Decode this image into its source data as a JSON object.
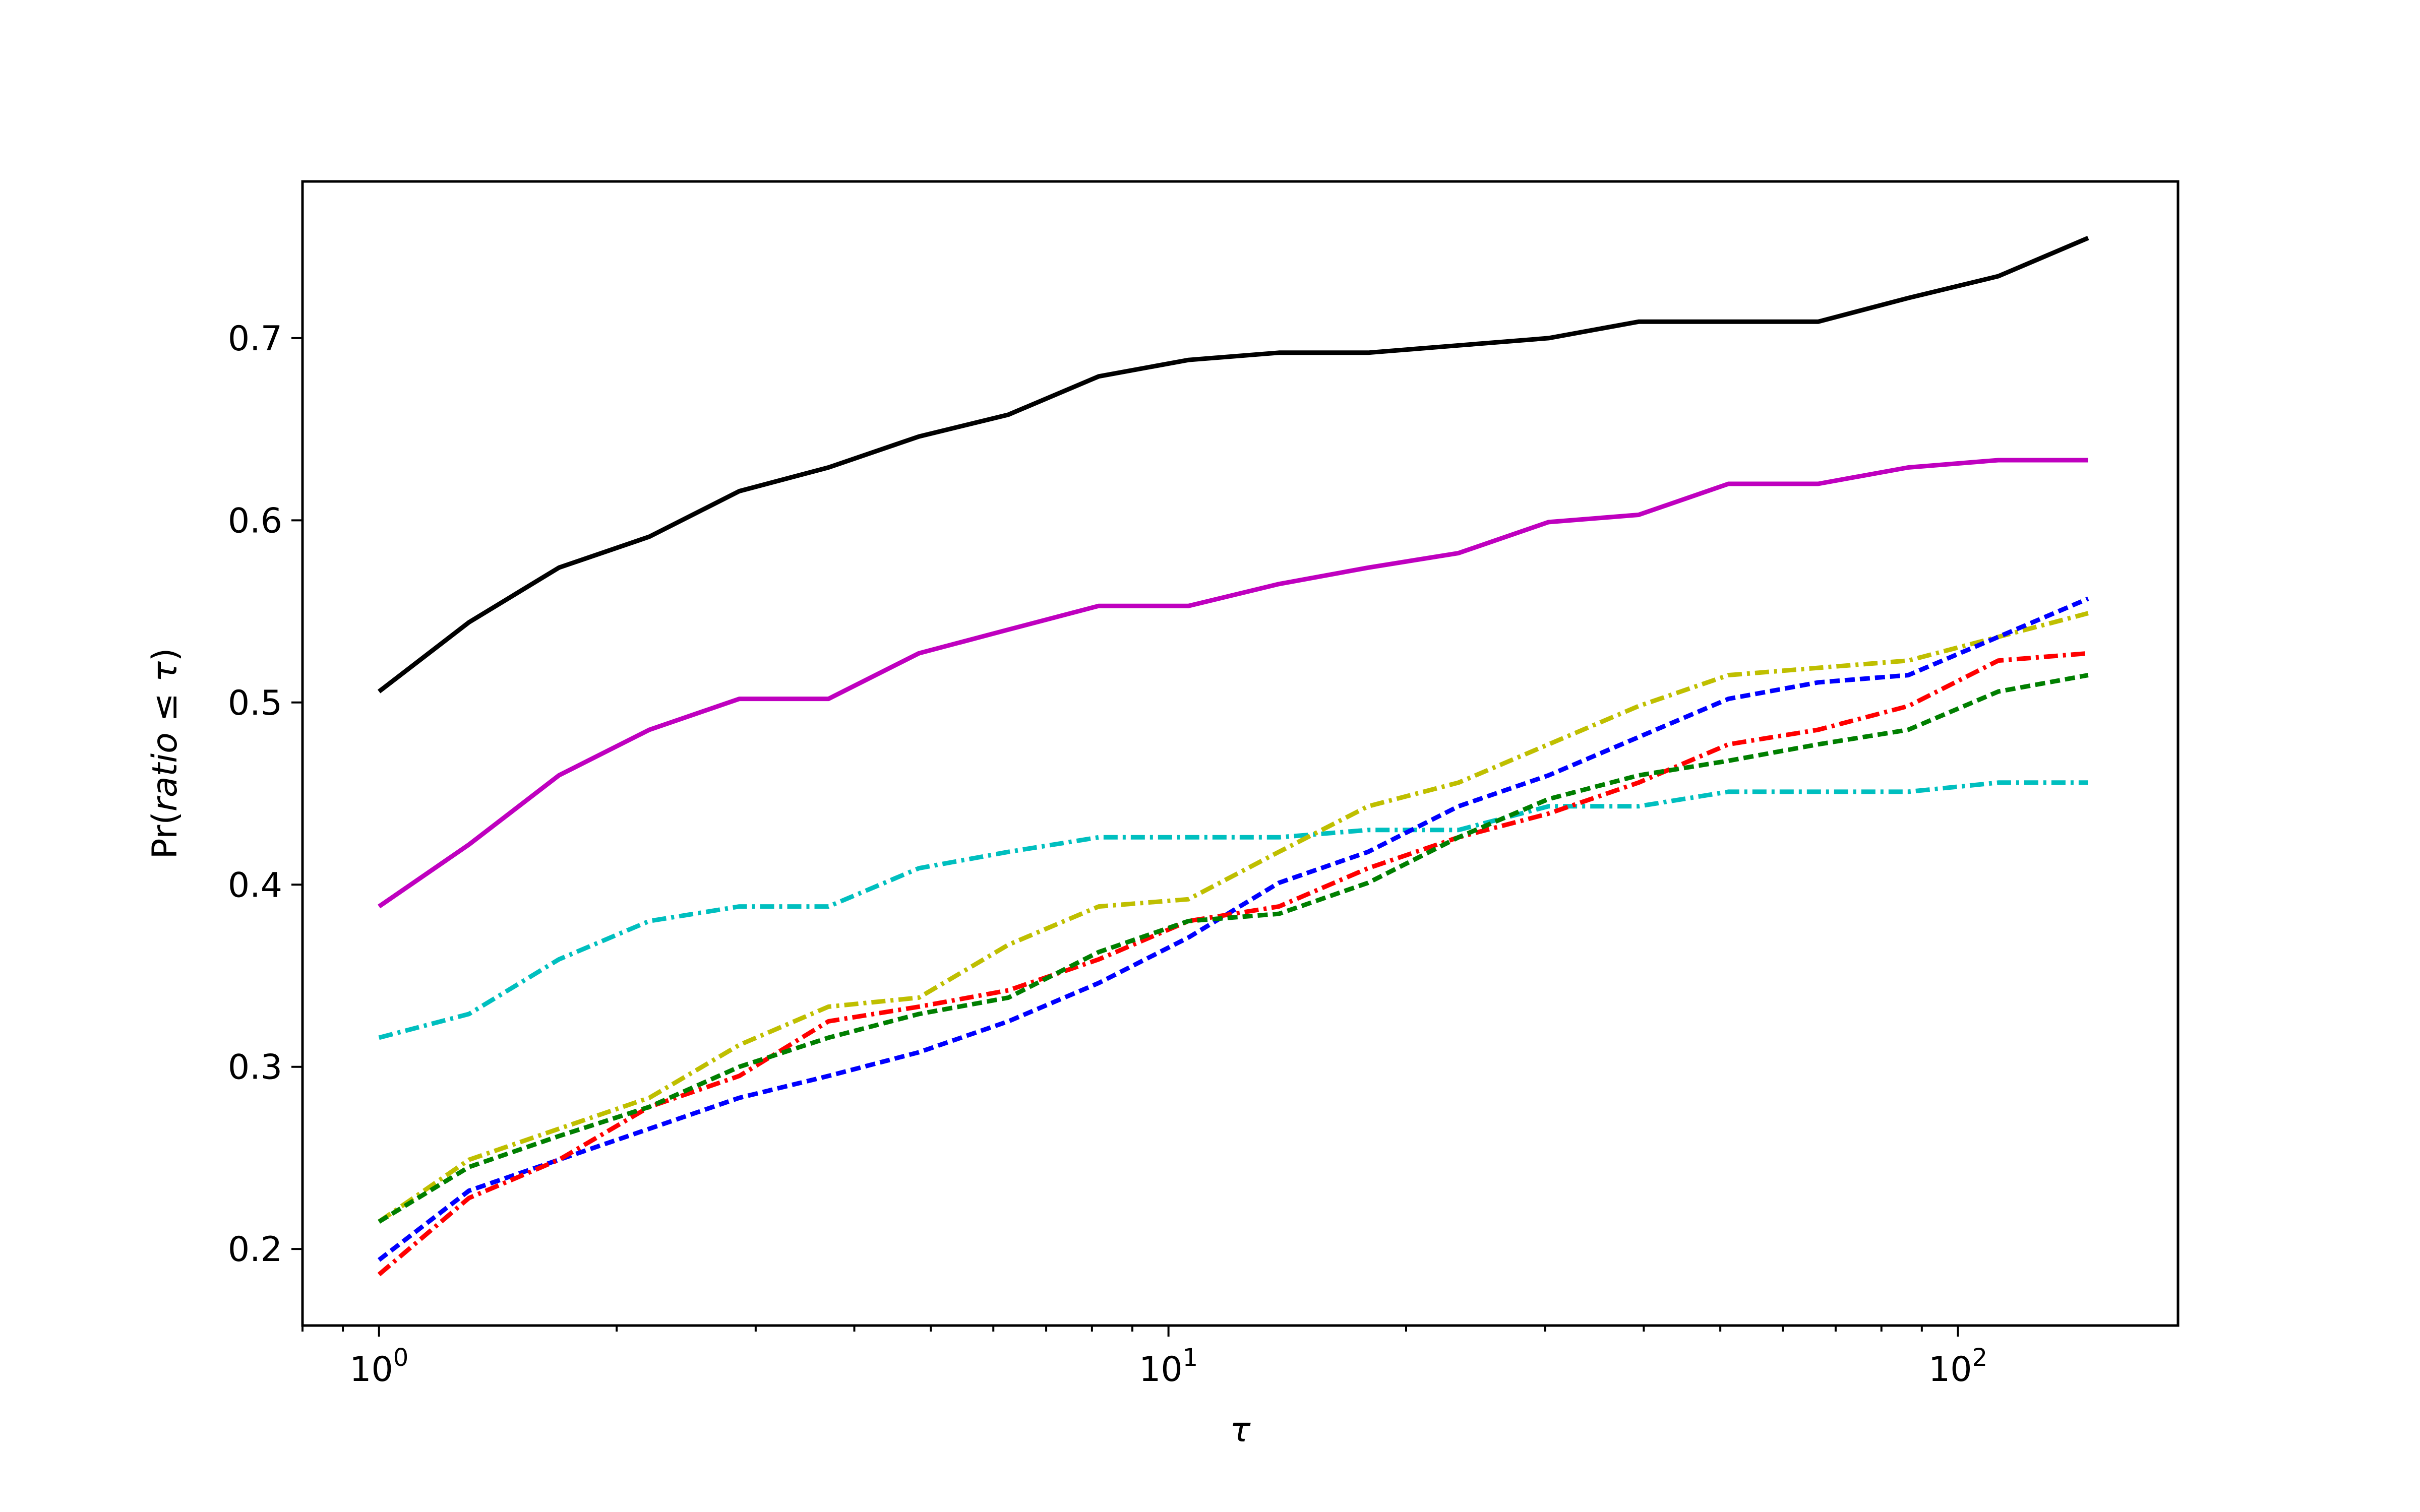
{
  "chart_data": {
    "type": "line",
    "title": "",
    "xlabel": "τ",
    "ylabel": {
      "prefix": "Pr(",
      "italic": "ratio",
      "relation": " ≤ ",
      "symbol": "τ",
      "suffix": ")"
    },
    "xscale": "log",
    "xlim": [
      0.8,
      190
    ],
    "ylim": [
      0.158,
      0.786
    ],
    "grid": false,
    "legend": "none",
    "x_ticks": [
      {
        "base": "10",
        "exp": "0",
        "value": 1
      },
      {
        "base": "10",
        "exp": "1",
        "value": 10
      },
      {
        "base": "10",
        "exp": "2",
        "value": 100
      }
    ],
    "y_ticks": [
      "0.2",
      "0.3",
      "0.4",
      "0.5",
      "0.6",
      "0.7"
    ],
    "x": [
      1.0,
      1.3,
      1.69,
      2.2,
      2.86,
      3.71,
      4.83,
      6.27,
      8.16,
      10.6,
      13.8,
      17.9,
      23.3,
      30.3,
      39.4,
      51.2,
      66.5,
      86.5,
      112.5,
      146.2
    ],
    "series": [
      {
        "color": "#000000",
        "dash": "solid",
        "values": [
          0.506,
          0.544,
          0.574,
          0.591,
          0.616,
          0.629,
          0.646,
          0.658,
          0.679,
          0.688,
          0.692,
          0.692,
          0.696,
          0.7,
          0.709,
          0.709,
          0.709,
          0.722,
          0.734,
          0.755
        ]
      },
      {
        "color": "#bf00bf",
        "dash": "solid",
        "values": [
          0.388,
          0.422,
          0.46,
          0.485,
          0.502,
          0.502,
          0.527,
          0.54,
          0.553,
          0.553,
          0.565,
          0.574,
          0.582,
          0.599,
          0.603,
          0.62,
          0.62,
          0.629,
          0.633,
          0.633
        ]
      },
      {
        "color": "#00bfbf",
        "dash": "dashdot",
        "values": [
          0.316,
          0.329,
          0.359,
          0.38,
          0.388,
          0.388,
          0.409,
          0.418,
          0.426,
          0.426,
          0.426,
          0.43,
          0.43,
          0.443,
          0.443,
          0.451,
          0.451,
          0.451,
          0.456,
          0.456
        ]
      },
      {
        "color": "#bfbf00",
        "dash": "dashdot",
        "values": [
          0.215,
          0.249,
          0.266,
          0.283,
          0.312,
          0.333,
          0.338,
          0.367,
          0.388,
          0.392,
          0.418,
          0.443,
          0.456,
          0.477,
          0.498,
          0.515,
          0.519,
          0.523,
          0.536,
          0.549
        ]
      },
      {
        "color": "#0000ff",
        "dash": "dashed",
        "values": [
          0.194,
          0.232,
          0.249,
          0.266,
          0.283,
          0.295,
          0.308,
          0.325,
          0.346,
          0.371,
          0.401,
          0.418,
          0.443,
          0.46,
          0.481,
          0.502,
          0.511,
          0.515,
          0.536,
          0.557
        ]
      },
      {
        "color": "#ff0000",
        "dash": "dashdot",
        "values": [
          0.186,
          0.228,
          0.249,
          0.278,
          0.295,
          0.325,
          0.333,
          0.342,
          0.359,
          0.38,
          0.388,
          0.409,
          0.426,
          0.439,
          0.456,
          0.477,
          0.485,
          0.498,
          0.523,
          0.527
        ]
      },
      {
        "color": "#007f00",
        "dash": "dashed",
        "values": [
          0.215,
          0.245,
          0.262,
          0.278,
          0.3,
          0.316,
          0.329,
          0.338,
          0.363,
          0.38,
          0.384,
          0.401,
          0.426,
          0.447,
          0.46,
          0.468,
          0.477,
          0.485,
          0.506,
          0.515
        ]
      }
    ]
  }
}
